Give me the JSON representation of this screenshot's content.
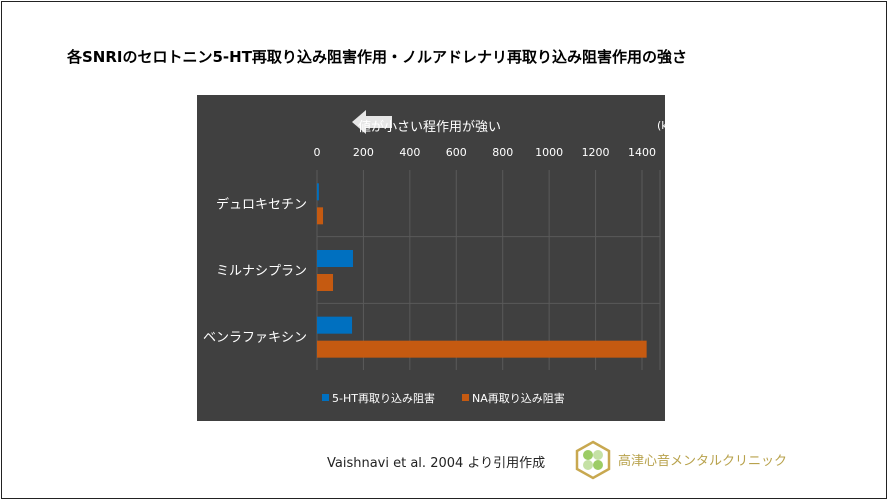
{
  "title": "各SNRIのセロトニン5-HT再取り込み阻害作用・ノルアドレナリ再取り込み阻害作用の強さ",
  "source": "Vaishnavi et al. 2004 より引用作成",
  "clinic_name": "高津心音メンタルクリニック",
  "chart_data": {
    "type": "bar",
    "orientation": "horizontal",
    "annotation": "値が小さい程作用が強い",
    "unit_label": "(ki)",
    "categories": [
      "デュロキセチン",
      "ミルナシプラン",
      "ベンラファキシン"
    ],
    "xlim": [
      0,
      1400
    ],
    "x_ticks": [
      "0",
      "200",
      "400",
      "600",
      "800",
      "1000",
      "1200",
      "1400"
    ],
    "grid": true,
    "legend_position": "bottom",
    "series": [
      {
        "name": "5-HT再取り込み阻害",
        "color": "#0070c0",
        "values": [
          8,
          155,
          151
        ]
      },
      {
        "name": "NA再取り込み阻害",
        "color": "#c55a11",
        "values": [
          26,
          69,
          1420
        ]
      }
    ]
  }
}
